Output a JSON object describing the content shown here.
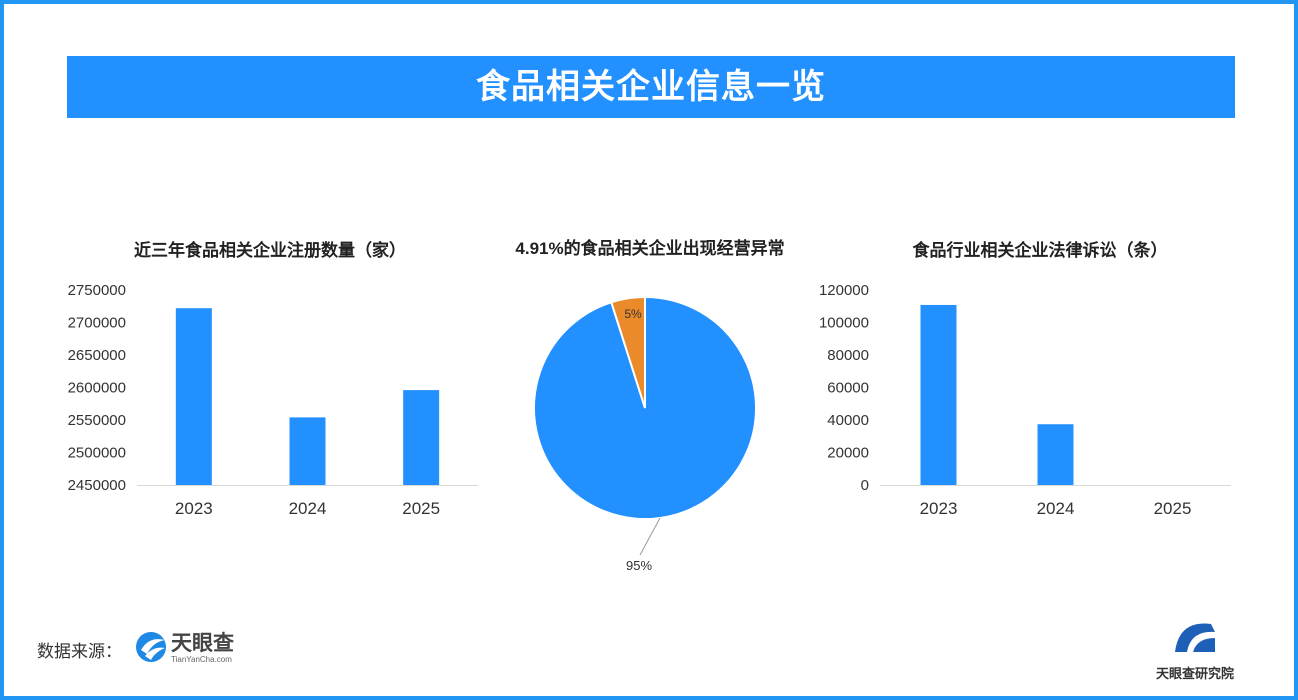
{
  "header": {
    "title": "食品相关企业信息一览"
  },
  "colors": {
    "bar": "#2291ff",
    "pie_main": "#2291ff",
    "pie_minor": "#ea8a2b",
    "banner": "#2291ff"
  },
  "chart_data": [
    {
      "type": "bar",
      "title": "近三年食品相关企业注册数量（家）",
      "categories": [
        "2023",
        "2024",
        "2025"
      ],
      "values": [
        2722000,
        2554000,
        2596000
      ],
      "ylim": [
        2450000,
        2750000
      ],
      "yticks": [
        "2750000",
        "2700000",
        "2650000",
        "2600000",
        "2550000",
        "2500000",
        "2450000"
      ],
      "grid": false
    },
    {
      "type": "pie",
      "title": "4.91%的食品相关企业出现经营异常",
      "slices": [
        {
          "label": "5%",
          "value": 4.91
        },
        {
          "label": "95%",
          "value": 95.09
        }
      ]
    },
    {
      "type": "bar",
      "title": "食品行业相关企业法律诉讼（条）",
      "categories": [
        "2023",
        "2024",
        "2025"
      ],
      "values": [
        110800,
        37400,
        0
      ],
      "ylim": [
        0,
        120000
      ],
      "yticks": [
        "120000",
        "100000",
        "80000",
        "60000",
        "40000",
        "20000",
        "0"
      ],
      "grid": false
    }
  ],
  "footer": {
    "source_label": "数据来源：",
    "source_logo_text": "天眼查",
    "source_logo_sub": "TianYanCha.com",
    "institute_logo_text": "天眼查研究院"
  }
}
